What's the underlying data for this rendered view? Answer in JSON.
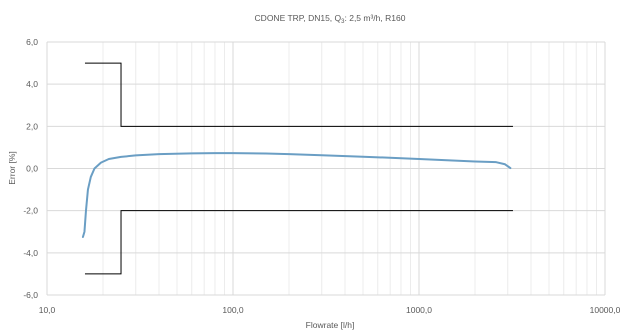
{
  "chart_data": {
    "type": "line",
    "title": "CDONE TRP, DN15, Q3: 2,5 m³/h, R160",
    "title_parts": {
      "prefix": "CDONE TRP, DN15, Q",
      "subscript": "3",
      "suffix": ": 2,5 m³/h, R160"
    },
    "xlabel": "Flowrate [l/h]",
    "ylabel": "Error [%]",
    "x_scale": "log",
    "xlim": [
      10,
      10000
    ],
    "ylim": [
      -6,
      6
    ],
    "x_ticks": [
      {
        "value": 10,
        "label": "10,0"
      },
      {
        "value": 100,
        "label": "100,0"
      },
      {
        "value": 1000,
        "label": "1000,0"
      },
      {
        "value": 10000,
        "label": "10000,0"
      }
    ],
    "y_ticks": [
      {
        "value": 6,
        "label": "6,0"
      },
      {
        "value": 4,
        "label": "4,0"
      },
      {
        "value": 2,
        "label": "2,0"
      },
      {
        "value": 0,
        "label": "0,0"
      },
      {
        "value": -2,
        "label": "-2,0"
      },
      {
        "value": -4,
        "label": "-4,0"
      },
      {
        "value": -6,
        "label": "-6,0"
      }
    ],
    "grid": true,
    "colors": {
      "curve": "#6a9ec4",
      "limits": "#000000",
      "grid": "#d9d9d9",
      "minor_grid": "#ececec",
      "text": "#595959"
    },
    "series": [
      {
        "kind": "curve",
        "x": [
          15.6,
          15.9,
          16.2,
          16.6,
          17.2,
          18.0,
          19.5,
          21.5,
          25,
          30,
          40,
          60,
          80,
          100,
          150,
          200,
          300,
          500,
          1000,
          2000,
          2600,
          2900,
          3100
        ],
        "y": [
          -3.25,
          -3.0,
          -2.0,
          -1.0,
          -0.4,
          0.0,
          0.28,
          0.45,
          0.55,
          0.62,
          0.68,
          0.72,
          0.73,
          0.73,
          0.71,
          0.68,
          0.63,
          0.56,
          0.45,
          0.33,
          0.3,
          0.2,
          0.02
        ]
      },
      {
        "kind": "upper-limit",
        "x": [
          16,
          25,
          25,
          3200
        ],
        "y": [
          5,
          5,
          2,
          2
        ]
      },
      {
        "kind": "lower-limit",
        "x": [
          16,
          25,
          25,
          3200
        ],
        "y": [
          -5,
          -5,
          -2,
          -2
        ]
      }
    ]
  }
}
